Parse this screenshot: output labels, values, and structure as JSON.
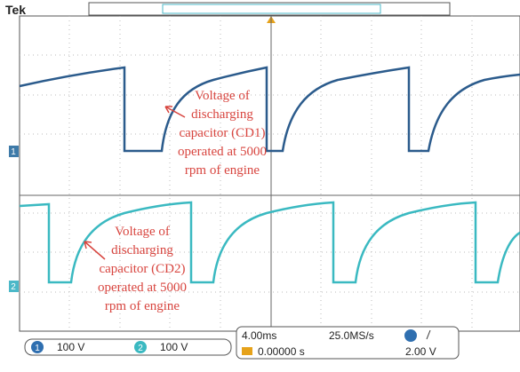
{
  "header": {
    "brand": "Tek"
  },
  "channels": {
    "ch1": "1",
    "ch2": "2"
  },
  "annotations": [
    {
      "lines": [
        "Voltage of",
        "discharging",
        "capacitor (CD1)",
        "operated at 5000",
        "rpm of engine"
      ]
    },
    {
      "lines": [
        "Voltage of",
        "discharging",
        "capacitor (CD2)",
        "operated at 5000",
        "rpm of engine"
      ]
    }
  ],
  "status": {
    "ch1_scale": "100 V",
    "ch2_scale": "100 V",
    "timebase": "4.00ms",
    "sample_rate": "25.0MS/s",
    "trigger_level": "2.00 V",
    "trigger_offset": "0.00000 s"
  }
}
